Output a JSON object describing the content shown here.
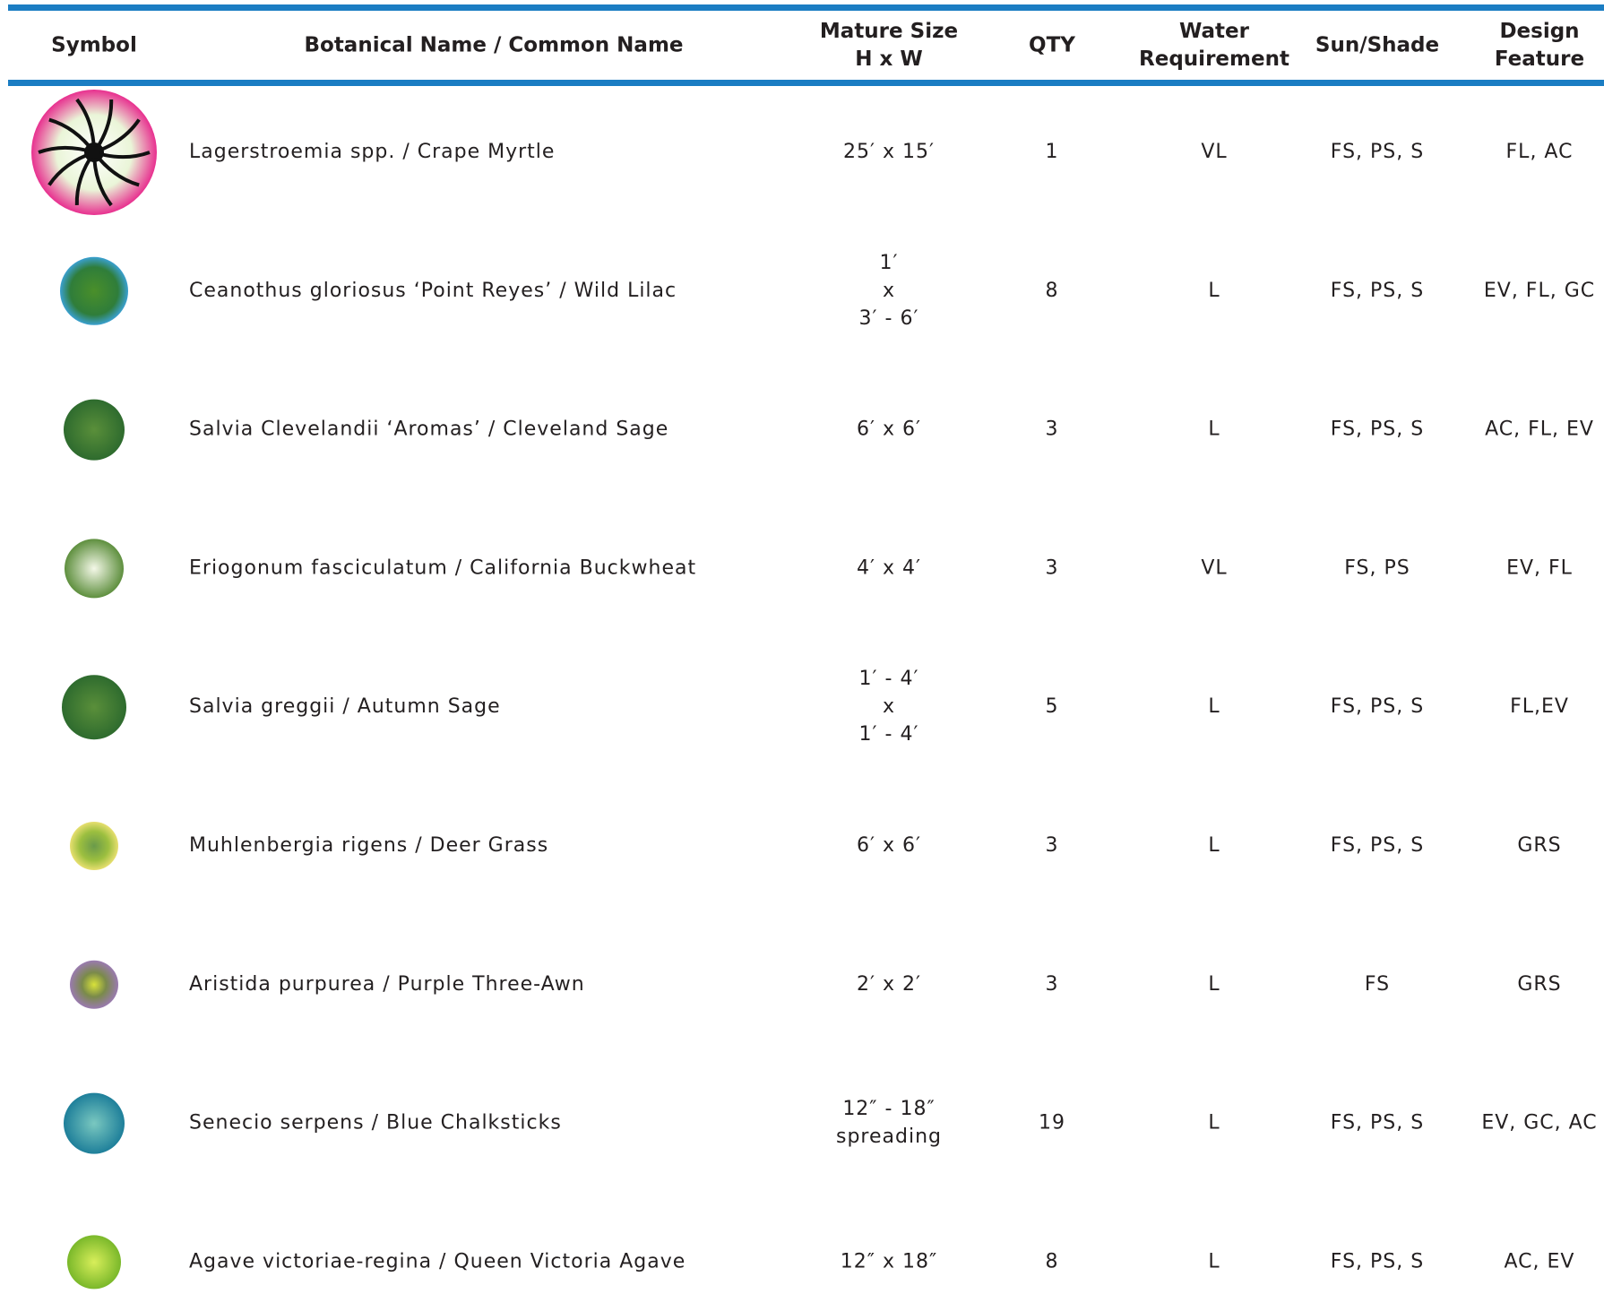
{
  "header": {
    "symbol": "Symbol",
    "name": "Botanical Name  /  Common Name",
    "mature_size": [
      "Mature Size",
      "H x W"
    ],
    "qty": "QTY",
    "water": [
      "Water",
      "Requirement"
    ],
    "sun": "Sun/Shade",
    "design": [
      "Design",
      "Feature"
    ]
  },
  "rows": [
    {
      "name": "Lagerstroemia spp.  /  Crape Myrtle",
      "size": [
        "25′ x 15′"
      ],
      "qty": 1,
      "water": "VL",
      "sun": "FS, PS, S",
      "design": "FL, AC"
    },
    {
      "name": "Ceanothus gloriosus ‘Point Reyes’  /  Wild Lilac",
      "size": [
        "1′",
        "x",
        "3′ - 6′"
      ],
      "qty": 8,
      "water": "L",
      "sun": "FS, PS, S",
      "design": "EV, FL, GC"
    },
    {
      "name": "Salvia Clevelandii ‘Aromas’  /  Cleveland Sage",
      "size": [
        "6′ x 6′"
      ],
      "qty": 3,
      "water": "L",
      "sun": "FS, PS, S",
      "design": "AC, FL, EV"
    },
    {
      "name": "Eriogonum fasciculatum  /  California Buckwheat",
      "size": [
        "4′ x 4′"
      ],
      "qty": 3,
      "water": "VL",
      "sun": "FS, PS",
      "design": "EV, FL"
    },
    {
      "name": "Salvia greggii  /  Autumn Sage",
      "size": [
        "1′ - 4′",
        "x",
        "1′ - 4′"
      ],
      "qty": 5,
      "water": "L",
      "sun": "FS, PS, S",
      "design": "FL,EV"
    },
    {
      "name": "Muhlenbergia rigens  /  Deer Grass",
      "size": [
        "6′ x 6′"
      ],
      "qty": 3,
      "water": "L",
      "sun": "FS, PS, S",
      "design": "GRS"
    },
    {
      "name": "Aristida purpurea  /  Purple Three-Awn",
      "size": [
        "2′ x 2′"
      ],
      "qty": 3,
      "water": "L",
      "sun": "FS",
      "design": "GRS"
    },
    {
      "name": "Senecio serpens  /  Blue Chalksticks",
      "size": [
        "12″ - 18″",
        "spreading"
      ],
      "qty": 19,
      "water": "L",
      "sun": "FS, PS, S",
      "design": "EV, GC, AC"
    },
    {
      "name": "Agave victoriae-regina  /  Queen Victoria Agave",
      "size": [
        "12″ x 18″"
      ],
      "qty": 8,
      "water": "L",
      "sun": "FS, PS, S",
      "design": "AC, EV"
    }
  ]
}
